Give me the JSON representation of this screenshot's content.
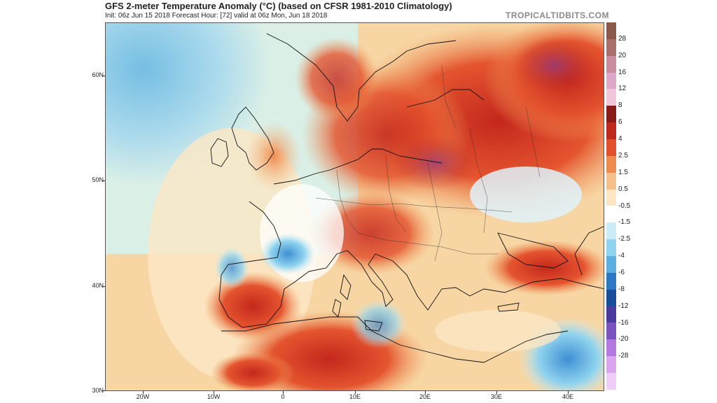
{
  "header": {
    "title": "GFS 2-meter Temperature Anomaly (°C) (based on CFSR 1981-2010 Climatology)",
    "subtitle": "Init: 06z Jun 15 2018   Forecast Hour: [72]   valid at 06z Mon, Jun 18 2018",
    "brand": "TROPICALTIDBITS.COM"
  },
  "map": {
    "lat_labels": [
      "60N",
      "50N",
      "40N",
      "30N"
    ],
    "lon_labels": [
      "20W",
      "10W",
      "0",
      "10E",
      "20E",
      "30E",
      "40E"
    ]
  },
  "colorbar": {
    "labels": [
      "28",
      "20",
      "16",
      "12",
      "8",
      "6",
      "4",
      "2.5",
      "1.5",
      "0.5",
      "-0.5",
      "-1.5",
      "-2.5",
      "-4",
      "-6",
      "-8",
      "-12",
      "-16",
      "-20",
      "-28"
    ],
    "colors": [
      "#8b5a4a",
      "#a9706a",
      "#c98da0",
      "#e0a8c8",
      "#f2c7dc",
      "#8b1a1a",
      "#c0281c",
      "#e2502e",
      "#ef8a4e",
      "#f6c08a",
      "#fbe6c4",
      "#ffffff",
      "#c9ecf6",
      "#8fd3ee",
      "#5aaee0",
      "#2c78c4",
      "#1a4c9e",
      "#4a3aa0",
      "#7a52c2",
      "#b27ae0",
      "#d9a6ee",
      "#eecdf6"
    ]
  }
}
